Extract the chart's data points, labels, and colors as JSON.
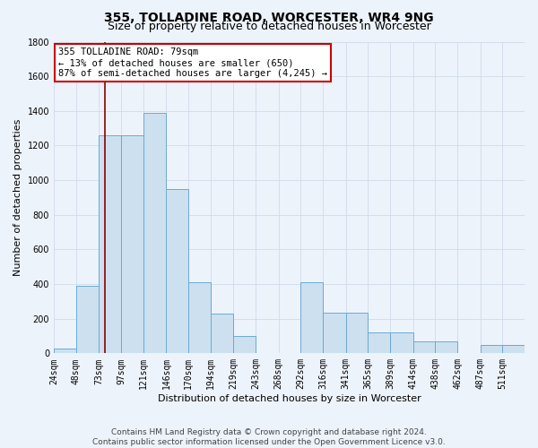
{
  "title": "355, TOLLADINE ROAD, WORCESTER, WR4 9NG",
  "subtitle": "Size of property relative to detached houses in Worcester",
  "xlabel": "Distribution of detached houses by size in Worcester",
  "ylabel": "Number of detached properties",
  "bar_edges": [
    24,
    48,
    73,
    97,
    121,
    146,
    170,
    194,
    219,
    243,
    268,
    292,
    316,
    341,
    365,
    389,
    414,
    438,
    462,
    487,
    511
  ],
  "bar_heights": [
    30,
    390,
    1260,
    1260,
    1390,
    950,
    410,
    230,
    100,
    0,
    0,
    410,
    235,
    235,
    120,
    120,
    70,
    70,
    0,
    50,
    50
  ],
  "bar_color": "#cde0f0",
  "bar_edge_color": "#6aaad4",
  "bar_linewidth": 0.7,
  "bg_color": "#edf3fb",
  "grid_color": "#d0dce8",
  "vline_x": 79,
  "vline_color": "#8b0000",
  "vline_lw": 1.2,
  "annotation_text": "355 TOLLADINE ROAD: 79sqm\n← 13% of detached houses are smaller (650)\n87% of semi-detached houses are larger (4,245) →",
  "annotation_box_color": "#ffffff",
  "annotation_edge_color": "#cc0000",
  "ylim": [
    0,
    1800
  ],
  "yticks": [
    0,
    200,
    400,
    600,
    800,
    1000,
    1200,
    1400,
    1600,
    1800
  ],
  "footnote": "Contains HM Land Registry data © Crown copyright and database right 2024.\nContains public sector information licensed under the Open Government Licence v3.0.",
  "title_fontsize": 10,
  "subtitle_fontsize": 9,
  "ylabel_fontsize": 8,
  "xlabel_fontsize": 8,
  "tick_fontsize": 7,
  "annotation_fontsize": 7.5,
  "footnote_fontsize": 6.5
}
